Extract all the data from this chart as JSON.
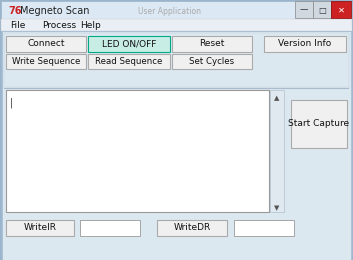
{
  "title": "Megneto Scan",
  "title_icon": "76",
  "menu_items": [
    "File",
    "Process",
    "Help"
  ],
  "led_button_color": "#c8ede4",
  "led_button_border": "#00aa88",
  "normal_button_color": "#f0f0f0",
  "normal_button_border": "#aaaaaa",
  "text_area_bg": "#ffffff",
  "text_area_border": "#999999",
  "outer_bg": "#c8d8e8",
  "window_bg": "#e4ecf4",
  "inner_bg": "#dce8f0",
  "title_bar_color": "#c0ccd8",
  "title_bar_bg": "#dce8f4",
  "font_size": 6.5,
  "window_border_color": "#9ab4cc",
  "title_text_color": "#222222",
  "close_btn_color": "#cc2222",
  "menu_bar_bg": "#eaeff5",
  "bottom_area_bg": "#d8e4f0",
  "scrollbar_bg": "#e0e8f0",
  "scrollbar_border": "#b0c0d0"
}
